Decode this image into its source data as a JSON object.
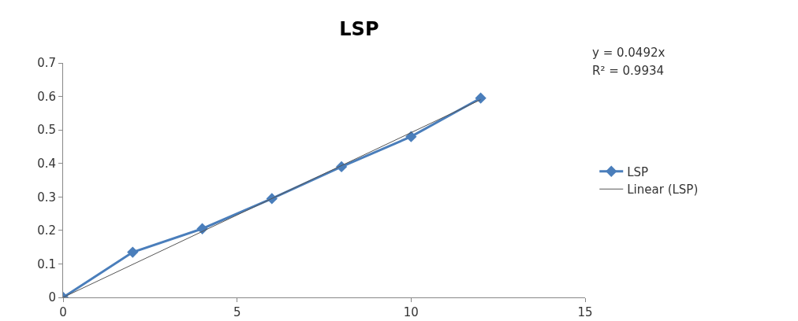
{
  "chart_data": {
    "type": "line",
    "title": "LSP",
    "x": [
      0,
      2,
      4,
      6,
      8,
      10,
      12
    ],
    "series": [
      {
        "name": "LSP",
        "color": "#4a7ebb",
        "values": [
          0,
          0.135,
          0.205,
          0.295,
          0.39,
          0.48,
          0.595
        ],
        "marker": "diamond"
      },
      {
        "name": "Linear (LSP)",
        "color": "#555555",
        "type": "line",
        "x": [
          0,
          12
        ],
        "values": [
          0,
          0.5904
        ],
        "marker": "none"
      }
    ],
    "xlim": [
      0,
      15
    ],
    "xticks": [
      0,
      5,
      10,
      15
    ],
    "ylim": [
      0,
      0.7
    ],
    "yticks": [
      0,
      0.1,
      0.2,
      0.3,
      0.4,
      0.5,
      0.6,
      0.7
    ],
    "grid": false,
    "legend": "right",
    "annotations": [
      "y = 0.0492x",
      "R² = 0.9934"
    ]
  }
}
